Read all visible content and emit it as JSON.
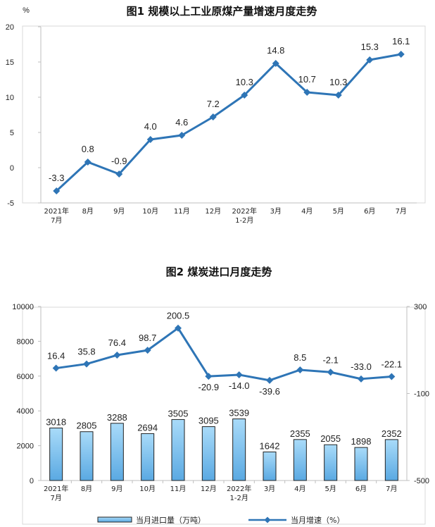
{
  "chart_data": [
    {
      "type": "line",
      "title": "图1  规模以上工业原煤产量增速月度走势",
      "ylabel": "%",
      "ylim": [
        -5,
        20
      ],
      "yticks": [
        "-5",
        "0",
        "5",
        "10",
        "15",
        "20"
      ],
      "categories": [
        [
          "2021年",
          "7月"
        ],
        [
          "8月"
        ],
        [
          "9月"
        ],
        [
          "10月"
        ],
        [
          "11月"
        ],
        [
          "12月"
        ],
        [
          "2022年",
          "1-2月"
        ],
        [
          "3月"
        ],
        [
          "4月"
        ],
        [
          "5月"
        ],
        [
          "6月"
        ],
        [
          "7月"
        ]
      ],
      "values": [
        -3.3,
        0.8,
        -0.9,
        4.0,
        4.6,
        7.2,
        10.3,
        14.8,
        10.7,
        10.3,
        15.3,
        16.1
      ],
      "value_labels": [
        "-3.3",
        "0.8",
        "-0.9",
        "4.0",
        "4.6",
        "7.2",
        "10.3",
        "14.8",
        "10.7",
        "10.3",
        "15.3",
        "16.1"
      ],
      "colors": {
        "line": "#2e75b6"
      }
    },
    {
      "type": "bar+line",
      "title": "图2  煤炭进口月度走势",
      "y1lim": [
        0,
        10000
      ],
      "y1ticks": [
        "0",
        "2000",
        "4000",
        "6000",
        "8000",
        "10000"
      ],
      "y2lim": [
        -500,
        300
      ],
      "y2ticks": [
        "-500",
        "-100",
        "300"
      ],
      "categories": [
        [
          "2021年",
          "7月"
        ],
        [
          "8月"
        ],
        [
          "9月"
        ],
        [
          "10月"
        ],
        [
          "11月"
        ],
        [
          "12月"
        ],
        [
          "2022年",
          "1-2月"
        ],
        [
          "3月"
        ],
        [
          "4月"
        ],
        [
          "5月"
        ],
        [
          "6月"
        ],
        [
          "7月"
        ]
      ],
      "series": [
        {
          "name": "当月进口量（万吨）",
          "axis": "left",
          "values": [
            3018,
            2805,
            3288,
            2694,
            3505,
            3095,
            3539,
            1642,
            2355,
            2055,
            1898,
            2352
          ],
          "value_labels": [
            "3018",
            "2805",
            "3288",
            "2694",
            "3505",
            "3095",
            "3539",
            "1642",
            "2355",
            "2055",
            "1898",
            "2352"
          ]
        },
        {
          "name": "当月增速（%）",
          "axis": "right",
          "values": [
            16.4,
            35.8,
            76.4,
            98.7,
            200.5,
            -20.9,
            -14.0,
            -39.6,
            8.5,
            -2.1,
            -33.0,
            -22.1
          ],
          "value_labels": [
            "16.4",
            "35.8",
            "76.4",
            "98.7",
            "200.5",
            "-20.9",
            "-14.0",
            "-39.6",
            "8.5",
            "-2.1",
            "-33.0",
            "-22.1"
          ]
        }
      ],
      "legend": [
        "当月进口量（万吨）",
        "当月增速（%）"
      ],
      "colors": {
        "bar_top": "#9dd4f7",
        "bar_bottom": "#57a8e3",
        "bar_stroke": "#222222",
        "line": "#2e75b6"
      }
    }
  ]
}
